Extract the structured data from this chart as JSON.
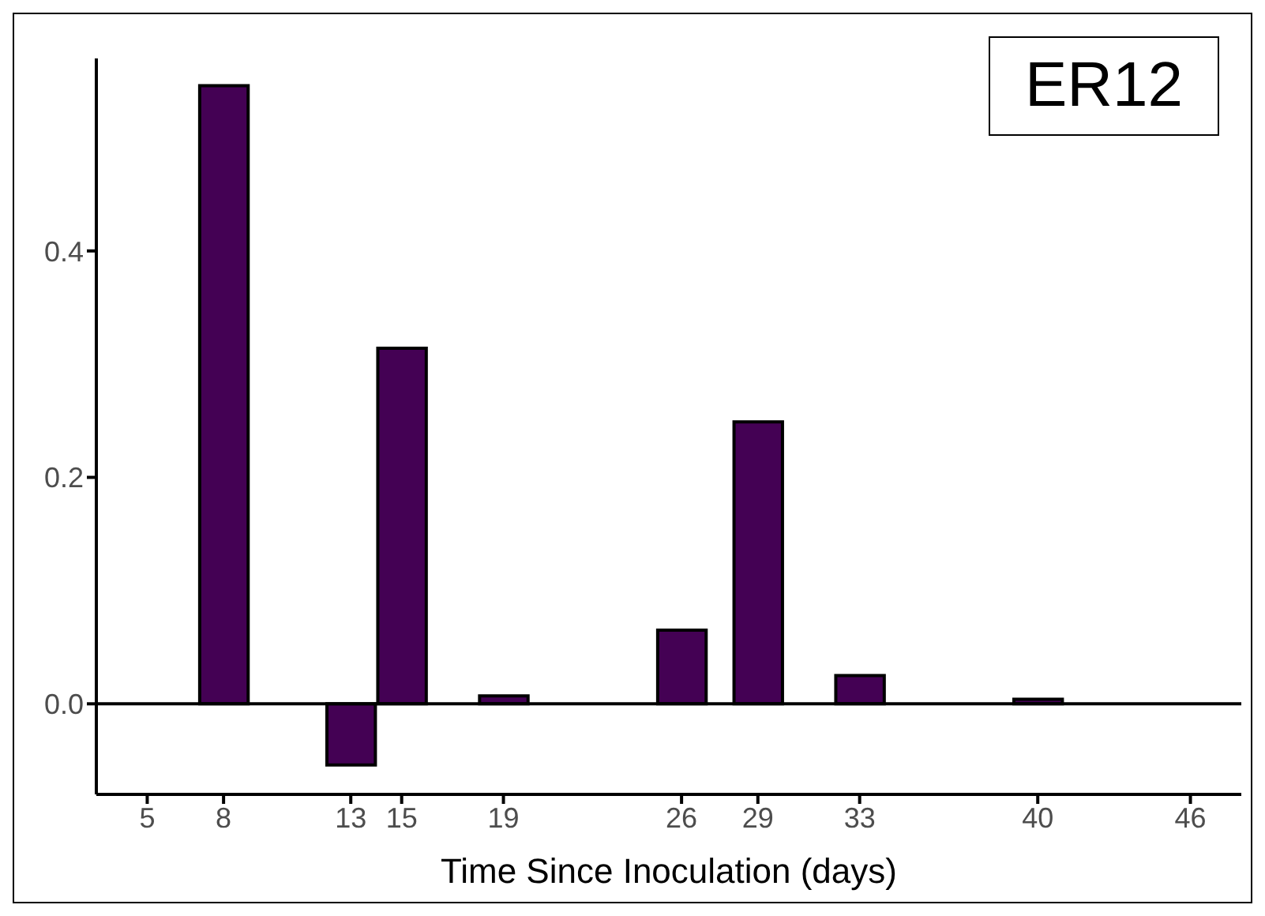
{
  "chart_data": {
    "type": "bar",
    "xlabel": "Time Since Inoculation (days)",
    "x": [
      8,
      13,
      15,
      19,
      26,
      29,
      33,
      40
    ],
    "values": [
      0.546,
      -0.054,
      0.314,
      0.007,
      0.065,
      0.249,
      0.025,
      0.004
    ],
    "color": "#440154",
    "xlim": [
      3,
      48
    ],
    "xticks": [
      5,
      8,
      13,
      15,
      19,
      26,
      29,
      33,
      40,
      46
    ],
    "ylim": [
      -0.08,
      0.57
    ],
    "yticks": [
      {
        "value": 0,
        "label": "0.0"
      },
      {
        "value": 0.2,
        "label": "0.2"
      },
      {
        "value": 0.4,
        "label": "0.4"
      }
    ],
    "ref_lines": [
      {
        "axis": "y",
        "value": 0,
        "color": "#000000"
      }
    ],
    "annotations": [
      "ER12"
    ],
    "grid": false
  }
}
